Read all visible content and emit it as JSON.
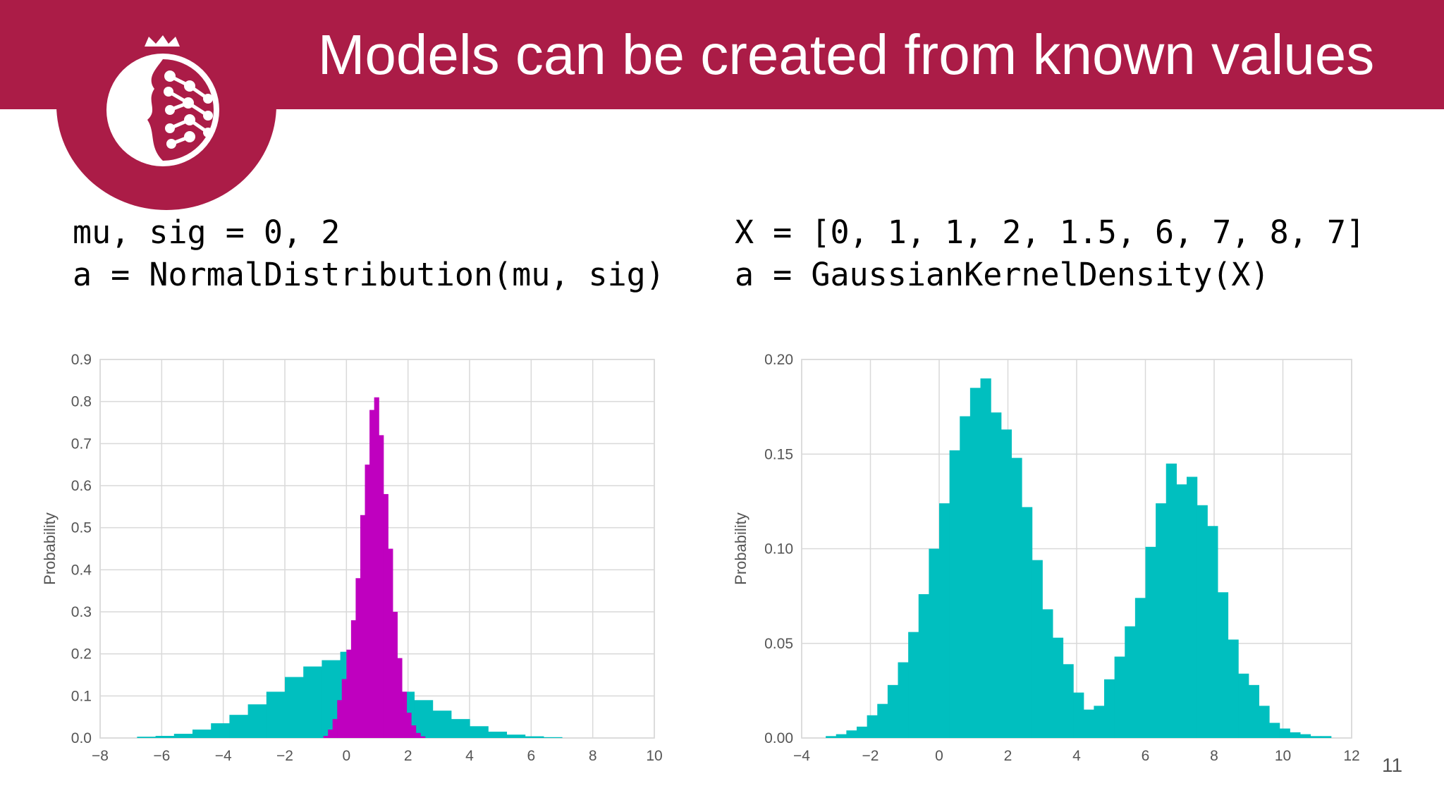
{
  "slide": {
    "title": "Models can be created from known values",
    "page_number": "11",
    "accent_color": "#ab1c47"
  },
  "logo": {
    "icon": "pomegranate-network-logo-icon"
  },
  "code_left": {
    "line1": "mu, sig = 0, 2",
    "line2": "a = NormalDistribution(mu, sig)"
  },
  "code_right": {
    "line1": "X = [0, 1, 1, 2, 1.5, 6, 7, 8, 7]",
    "line2": "a = GaussianKernelDensity(X)"
  },
  "chart_data": [
    {
      "type": "bar",
      "ylabel": "Probability",
      "xlim": [
        -8,
        10
      ],
      "ylim": [
        0,
        0.9
      ],
      "xticks": [
        "-8",
        "-6",
        "-4",
        "-2",
        "0",
        "2",
        "4",
        "6",
        "8",
        "10"
      ],
      "yticks": [
        "0.0",
        "0.1",
        "0.2",
        "0.3",
        "0.4",
        "0.5",
        "0.6",
        "0.7",
        "0.8",
        "0.9"
      ],
      "grid": true,
      "series": [
        {
          "color": "#00bfbf",
          "bin_width": 0.6,
          "bin_left": [
            -6.8,
            -6.2,
            -5.6,
            -5.0,
            -4.4,
            -3.8,
            -3.2,
            -2.6,
            -2.0,
            -1.4,
            -0.8,
            -0.2,
            0.4,
            1.0,
            1.6,
            2.2,
            2.8,
            3.4,
            4.0,
            4.6,
            5.2,
            5.8,
            6.4
          ],
          "values": [
            0.003,
            0.005,
            0.01,
            0.02,
            0.035,
            0.055,
            0.08,
            0.11,
            0.145,
            0.17,
            0.185,
            0.205,
            0.19,
            0.155,
            0.11,
            0.09,
            0.065,
            0.045,
            0.028,
            0.015,
            0.008,
            0.004,
            0.002
          ]
        },
        {
          "color": "#bf00bf",
          "bin_width": 0.15,
          "bin_left": [
            -0.75,
            -0.6,
            -0.45,
            -0.3,
            -0.15,
            0.0,
            0.15,
            0.3,
            0.45,
            0.6,
            0.75,
            0.9,
            1.05,
            1.2,
            1.35,
            1.5,
            1.65,
            1.8,
            1.95,
            2.1,
            2.25,
            2.4
          ],
          "values": [
            0.005,
            0.02,
            0.045,
            0.09,
            0.14,
            0.21,
            0.28,
            0.38,
            0.53,
            0.65,
            0.78,
            0.81,
            0.72,
            0.58,
            0.45,
            0.3,
            0.19,
            0.11,
            0.06,
            0.03,
            0.012,
            0.004
          ]
        }
      ]
    },
    {
      "type": "bar",
      "ylabel": "Probability",
      "xlim": [
        -4,
        12
      ],
      "ylim": [
        0,
        0.2
      ],
      "xticks": [
        "-4",
        "-2",
        "0",
        "2",
        "4",
        "6",
        "8",
        "10",
        "12"
      ],
      "yticks": [
        "0.00",
        "0.05",
        "0.10",
        "0.15",
        "0.20"
      ],
      "grid": true,
      "series": [
        {
          "color": "#00bfbf",
          "bin_width": 0.3,
          "bin_left": [
            -3.3,
            -3.0,
            -2.7,
            -2.4,
            -2.1,
            -1.8,
            -1.5,
            -1.2,
            -0.9,
            -0.6,
            -0.3,
            0.0,
            0.3,
            0.6,
            0.9,
            1.2,
            1.5,
            1.8,
            2.1,
            2.4,
            2.7,
            3.0,
            3.3,
            3.6,
            3.9,
            4.2,
            4.5,
            4.8,
            5.1,
            5.4,
            5.7,
            6.0,
            6.3,
            6.6,
            6.9,
            7.2,
            7.5,
            7.8,
            8.1,
            8.4,
            8.7,
            9.0,
            9.3,
            9.6,
            9.9,
            10.2,
            10.5,
            10.8,
            11.1
          ],
          "values": [
            0.001,
            0.002,
            0.004,
            0.006,
            0.012,
            0.018,
            0.028,
            0.04,
            0.056,
            0.076,
            0.1,
            0.124,
            0.152,
            0.17,
            0.185,
            0.19,
            0.172,
            0.163,
            0.148,
            0.122,
            0.094,
            0.068,
            0.053,
            0.039,
            0.024,
            0.015,
            0.017,
            0.031,
            0.043,
            0.059,
            0.074,
            0.101,
            0.124,
            0.145,
            0.134,
            0.138,
            0.123,
            0.112,
            0.077,
            0.052,
            0.034,
            0.028,
            0.017,
            0.008,
            0.005,
            0.003,
            0.002,
            0.001,
            0.001
          ]
        }
      ]
    }
  ]
}
